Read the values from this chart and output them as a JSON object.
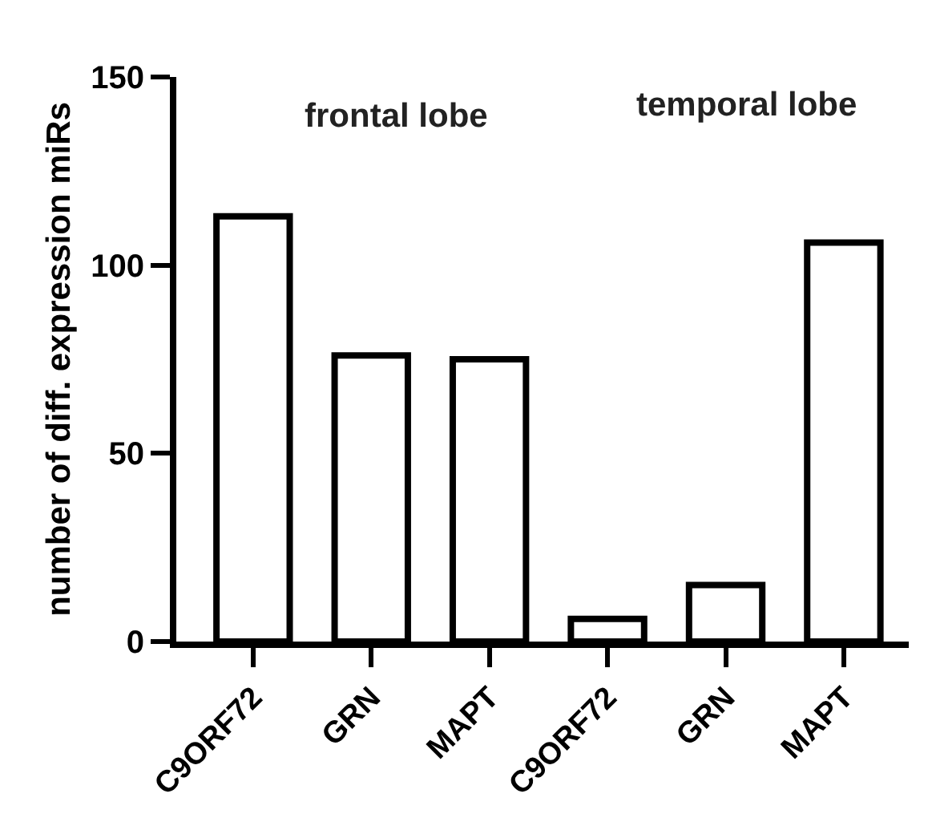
{
  "chart_data": {
    "type": "bar",
    "ylabel": "number of diff. expression miRs",
    "categories": [
      "C9ORF72",
      "GRN",
      "MAPT",
      "C9ORF72",
      "GRN",
      "MAPT"
    ],
    "series": [
      {
        "color": "#ffffff",
        "values": [
          113,
          76,
          75,
          6,
          15,
          106
        ]
      }
    ],
    "ylim": [
      0,
      150
    ],
    "yticks": [
      0,
      50,
      100,
      150
    ],
    "legend": false,
    "annotations": [
      "frontal lobe",
      "temporal lobe"
    ]
  }
}
